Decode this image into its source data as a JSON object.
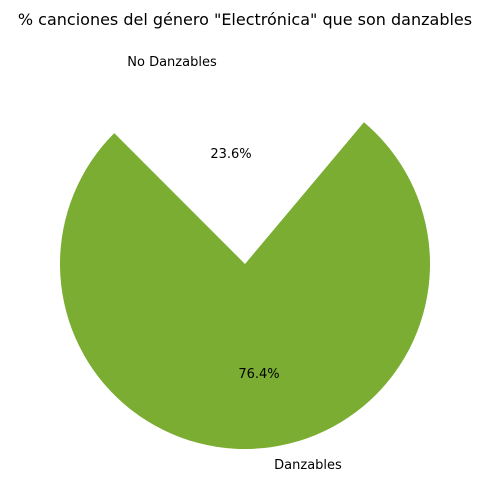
{
  "chart_data": {
    "type": "pie",
    "title": "% canciones del género \"Electrónica\" que son danzables",
    "categories": [
      "No Danzables",
      "Danzables"
    ],
    "values": [
      23.6,
      76.4
    ],
    "percent_labels": [
      "23.6%",
      "76.4%"
    ],
    "colors": [
      "#ffffff",
      "#7aad31"
    ],
    "legend": "none"
  }
}
